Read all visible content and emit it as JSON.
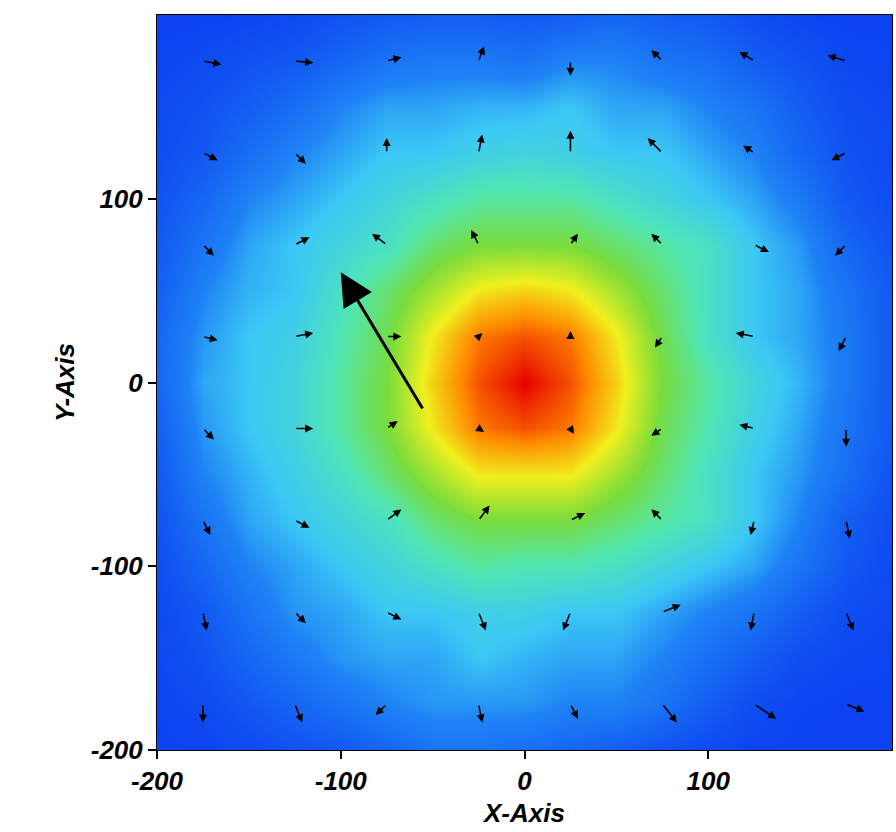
{
  "chart_data": {
    "type": "heatmap",
    "xlabel": "X-Axis",
    "ylabel": "Y-Axis",
    "xlim": [
      -200,
      200
    ],
    "ylim": [
      -200,
      200
    ],
    "xticks": [
      -200,
      -100,
      0,
      100
    ],
    "yticks": [
      -200,
      -100,
      0,
      100
    ],
    "zlim": [
      0,
      10
    ],
    "x": [
      -200,
      -175,
      -150,
      -125,
      -100,
      -75,
      -50,
      -25,
      0,
      25,
      50,
      75,
      100,
      125,
      150,
      175,
      200
    ],
    "y": [
      -200,
      -175,
      -150,
      -125,
      -100,
      -75,
      -50,
      -25,
      0,
      25,
      50,
      75,
      100,
      125,
      150,
      175,
      200
    ],
    "z": [
      [
        0.2,
        0.3,
        0.5,
        0.8,
        1,
        1.5,
        2,
        2,
        1.8,
        1.5,
        1.2,
        0.8,
        0.5,
        0.3,
        0.2,
        0.2,
        0.2
      ],
      [
        0.3,
        0.5,
        1,
        1.5,
        2,
        2.5,
        2.8,
        2.8,
        2.8,
        2.5,
        2.5,
        2,
        1.2,
        0.6,
        0.3,
        0.2,
        0.2
      ],
      [
        0.4,
        0.8,
        1.5,
        2.2,
        2.8,
        3,
        3,
        3.5,
        3.2,
        3,
        3,
        2.5,
        1.8,
        1.2,
        0.6,
        0.4,
        0.3
      ],
      [
        0.5,
        1,
        2,
        2.8,
        3,
        3.5,
        3.5,
        3.8,
        3.8,
        3.5,
        3.5,
        3,
        2.5,
        2,
        1.2,
        0.6,
        0.4
      ],
      [
        0.6,
        1.5,
        2.5,
        3,
        3.5,
        4,
        4.5,
        5,
        4.8,
        4.8,
        4.5,
        4,
        3.5,
        3,
        2,
        1,
        0.5
      ],
      [
        0.8,
        2,
        3,
        3.5,
        4,
        4.5,
        5.5,
        6,
        6,
        6,
        5.5,
        5,
        4.5,
        3.5,
        2.5,
        1.2,
        0.6
      ],
      [
        1,
        2.5,
        3.2,
        3.8,
        4.5,
        5.5,
        6.5,
        7.5,
        7.5,
        7.5,
        6.5,
        5.5,
        4.5,
        3.5,
        2.8,
        1.8,
        0.8
      ],
      [
        1.2,
        2.8,
        3.5,
        4,
        5,
        6,
        7.5,
        8.8,
        9.2,
        8.8,
        7.5,
        5.8,
        4.8,
        3.8,
        3,
        2,
        1
      ],
      [
        1.5,
        3,
        3.5,
        4,
        5,
        6,
        7.8,
        9.2,
        10,
        9.2,
        7.8,
        6,
        5,
        4,
        3.2,
        2.2,
        1
      ],
      [
        1.5,
        2.8,
        3.5,
        3.8,
        4.8,
        5.8,
        7.5,
        8.8,
        9.2,
        8.8,
        7.5,
        5.8,
        4.5,
        3.5,
        3,
        2.2,
        1
      ],
      [
        1.2,
        2.5,
        3.2,
        3.5,
        4.5,
        5.5,
        6.5,
        7.5,
        7.8,
        7.5,
        6.5,
        5.5,
        4.5,
        3.5,
        3,
        2,
        1
      ],
      [
        1,
        2,
        3,
        3.5,
        4,
        4.5,
        5.5,
        6,
        6,
        6,
        5.5,
        5,
        4.5,
        3.5,
        2.8,
        1.5,
        0.8
      ],
      [
        0.8,
        1.5,
        2.5,
        3,
        3.5,
        4,
        4.5,
        5,
        5,
        5,
        4.5,
        4,
        3.5,
        3,
        2.2,
        1,
        0.6
      ],
      [
        0.6,
        1,
        1.8,
        2.5,
        3,
        3.5,
        3.5,
        3.8,
        4,
        3.8,
        3.5,
        3.5,
        3,
        2.5,
        1.5,
        0.8,
        0.5
      ],
      [
        0.5,
        0.8,
        1.2,
        1.8,
        2.5,
        3,
        3,
        3.2,
        3.2,
        3.5,
        3,
        3,
        2.5,
        2,
        1.2,
        0.6,
        0.4
      ],
      [
        0.3,
        0.5,
        0.8,
        1,
        1.5,
        2,
        2.2,
        2.2,
        2,
        2.5,
        2.5,
        2,
        1.8,
        1.2,
        0.8,
        0.4,
        0.3
      ],
      [
        0.2,
        0.2,
        0.3,
        0.5,
        0.8,
        1,
        1.2,
        1.2,
        1,
        1.2,
        1.5,
        1.2,
        1,
        0.6,
        0.3,
        0.2,
        0.2
      ]
    ],
    "vectors": [
      {
        "x": -175,
        "y": 175,
        "u": 10,
        "v": -2
      },
      {
        "x": -125,
        "y": 175,
        "u": 10,
        "v": -1
      },
      {
        "x": -75,
        "y": 175,
        "u": 8,
        "v": 2
      },
      {
        "x": -25,
        "y": 175,
        "u": 3,
        "v": 8
      },
      {
        "x": 25,
        "y": 175,
        "u": 0,
        "v": -8
      },
      {
        "x": 75,
        "y": 175,
        "u": -6,
        "v": 6
      },
      {
        "x": 125,
        "y": 175,
        "u": -8,
        "v": 5
      },
      {
        "x": 175,
        "y": 175,
        "u": -10,
        "v": 3
      },
      {
        "x": -175,
        "y": 125,
        "u": 8,
        "v": -4
      },
      {
        "x": -125,
        "y": 125,
        "u": 6,
        "v": -6
      },
      {
        "x": -75,
        "y": 125,
        "u": 0,
        "v": 8
      },
      {
        "x": -25,
        "y": 125,
        "u": 2,
        "v": 10
      },
      {
        "x": 25,
        "y": 125,
        "u": 0,
        "v": 12
      },
      {
        "x": 75,
        "y": 125,
        "u": -8,
        "v": 8
      },
      {
        "x": 125,
        "y": 125,
        "u": -6,
        "v": 4
      },
      {
        "x": 175,
        "y": 125,
        "u": -8,
        "v": -4
      },
      {
        "x": -175,
        "y": 75,
        "u": 6,
        "v": -6
      },
      {
        "x": -125,
        "y": 75,
        "u": 8,
        "v": 4
      },
      {
        "x": -75,
        "y": 75,
        "u": -8,
        "v": 6
      },
      {
        "x": -25,
        "y": 75,
        "u": -4,
        "v": 8
      },
      {
        "x": 25,
        "y": 75,
        "u": 4,
        "v": 6
      },
      {
        "x": 75,
        "y": 75,
        "u": -6,
        "v": 6
      },
      {
        "x": 125,
        "y": 75,
        "u": 8,
        "v": -4
      },
      {
        "x": 175,
        "y": 75,
        "u": -6,
        "v": -6
      },
      {
        "x": -175,
        "y": 25,
        "u": 8,
        "v": -2
      },
      {
        "x": -125,
        "y": 25,
        "u": 10,
        "v": 2
      },
      {
        "x": -75,
        "y": 25,
        "u": 8,
        "v": 0
      },
      {
        "x": -25,
        "y": 25,
        "u": 2,
        "v": 2
      },
      {
        "x": 25,
        "y": 25,
        "u": 0,
        "v": 3
      },
      {
        "x": 75,
        "y": 25,
        "u": -4,
        "v": -6
      },
      {
        "x": 125,
        "y": 25,
        "u": -10,
        "v": 2
      },
      {
        "x": 175,
        "y": 25,
        "u": -4,
        "v": -8
      },
      {
        "x": -175,
        "y": -25,
        "u": 6,
        "v": -6
      },
      {
        "x": -125,
        "y": -25,
        "u": 10,
        "v": 0
      },
      {
        "x": -75,
        "y": -25,
        "u": 6,
        "v": 4
      },
      {
        "x": -25,
        "y": -25,
        "u": 3,
        "v": -2
      },
      {
        "x": 25,
        "y": -25,
        "u": 2,
        "v": -3
      },
      {
        "x": 75,
        "y": -25,
        "u": -6,
        "v": -4
      },
      {
        "x": 125,
        "y": -25,
        "u": -8,
        "v": 2
      },
      {
        "x": 175,
        "y": -25,
        "u": 0,
        "v": -10
      },
      {
        "x": -175,
        "y": -75,
        "u": 4,
        "v": -8
      },
      {
        "x": -125,
        "y": -75,
        "u": 8,
        "v": -4
      },
      {
        "x": -75,
        "y": -75,
        "u": 8,
        "v": 6
      },
      {
        "x": -25,
        "y": -75,
        "u": 6,
        "v": 8
      },
      {
        "x": 25,
        "y": -75,
        "u": 8,
        "v": 4
      },
      {
        "x": 75,
        "y": -75,
        "u": -6,
        "v": 6
      },
      {
        "x": 125,
        "y": -75,
        "u": -2,
        "v": -8
      },
      {
        "x": 175,
        "y": -75,
        "u": 2,
        "v": -10
      },
      {
        "x": -175,
        "y": -125,
        "u": 2,
        "v": -10
      },
      {
        "x": -125,
        "y": -125,
        "u": 6,
        "v": -6
      },
      {
        "x": -75,
        "y": -125,
        "u": 8,
        "v": -4
      },
      {
        "x": -25,
        "y": -125,
        "u": 4,
        "v": -10
      },
      {
        "x": 25,
        "y": -125,
        "u": -4,
        "v": -10
      },
      {
        "x": 75,
        "y": -125,
        "u": 10,
        "v": 4
      },
      {
        "x": 125,
        "y": -125,
        "u": -2,
        "v": -10
      },
      {
        "x": 175,
        "y": -125,
        "u": 4,
        "v": -10
      },
      {
        "x": -175,
        "y": -175,
        "u": 0,
        "v": -10
      },
      {
        "x": -125,
        "y": -175,
        "u": 4,
        "v": -10
      },
      {
        "x": -75,
        "y": -175,
        "u": -6,
        "v": -6
      },
      {
        "x": -25,
        "y": -175,
        "u": 2,
        "v": -10
      },
      {
        "x": 25,
        "y": -175,
        "u": 4,
        "v": -8
      },
      {
        "x": 75,
        "y": -175,
        "u": 8,
        "v": -10
      },
      {
        "x": 125,
        "y": -175,
        "u": 12,
        "v": -8
      },
      {
        "x": 175,
        "y": -175,
        "u": 10,
        "v": -4
      },
      {
        "x": -55,
        "y": -15,
        "u": -45,
        "v": 75
      }
    ]
  }
}
